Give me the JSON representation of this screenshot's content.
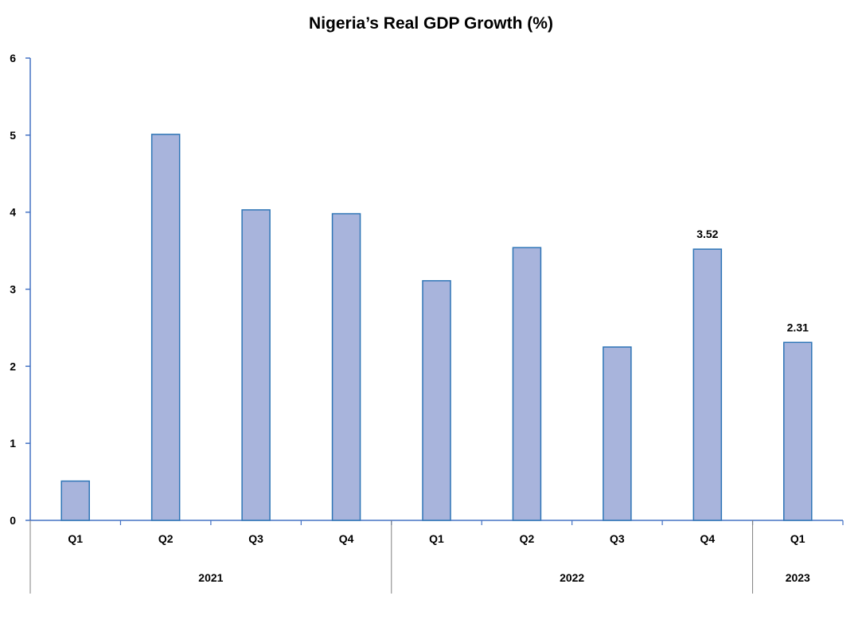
{
  "chart_data": {
    "type": "bar",
    "title": "Nigeria’s Real GDP Growth (%)",
    "xlabel": "",
    "ylabel": "",
    "ylim": [
      0,
      6
    ],
    "yticks": [
      0,
      1,
      2,
      3,
      4,
      5,
      6
    ],
    "grid": false,
    "legend": "none",
    "categories": [
      "Q1",
      "Q2",
      "Q3",
      "Q4",
      "Q1",
      "Q2",
      "Q3",
      "Q4",
      "Q1"
    ],
    "groups": [
      {
        "label": "2021",
        "count": 4
      },
      {
        "label": "2022",
        "count": 4
      },
      {
        "label": "2023",
        "count": 1
      }
    ],
    "values": [
      0.51,
      5.01,
      4.03,
      3.98,
      3.11,
      3.54,
      2.25,
      3.52,
      2.31
    ],
    "data_labels": [
      "",
      "",
      "",
      "",
      "",
      "",
      "",
      "3.52",
      "2.31"
    ],
    "colors": {
      "bar_fill": "#a8b4dc",
      "bar_stroke": "#2e75b6",
      "axis": "#4472c4",
      "text": "#000000"
    }
  }
}
